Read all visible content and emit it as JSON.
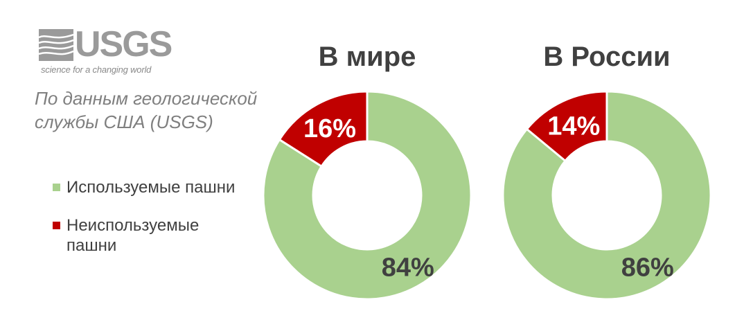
{
  "logo": {
    "name": "USGS",
    "tagline": "science for a changing world"
  },
  "source_note": "По данным геологической службы США (USGS)",
  "legend": [
    {
      "label": "Используемые пашни",
      "color": "#a9d18e"
    },
    {
      "label": "Неиспользуемые пашни",
      "color": "#c00000"
    }
  ],
  "chart_data": [
    {
      "type": "pie",
      "title": "В мире",
      "categories": [
        "Используемые пашни",
        "Неиспользуемые пашни"
      ],
      "values": [
        84,
        16
      ],
      "labels": [
        "84%",
        "16%"
      ],
      "colors": [
        "#a9d18e",
        "#c00000"
      ],
      "donut": true
    },
    {
      "type": "pie",
      "title": "В России",
      "categories": [
        "Используемые пашни",
        "Неиспользуемые пашни"
      ],
      "values": [
        86,
        14
      ],
      "labels": [
        "86%",
        "14%"
      ],
      "colors": [
        "#a9d18e",
        "#c00000"
      ],
      "donut": true
    }
  ]
}
